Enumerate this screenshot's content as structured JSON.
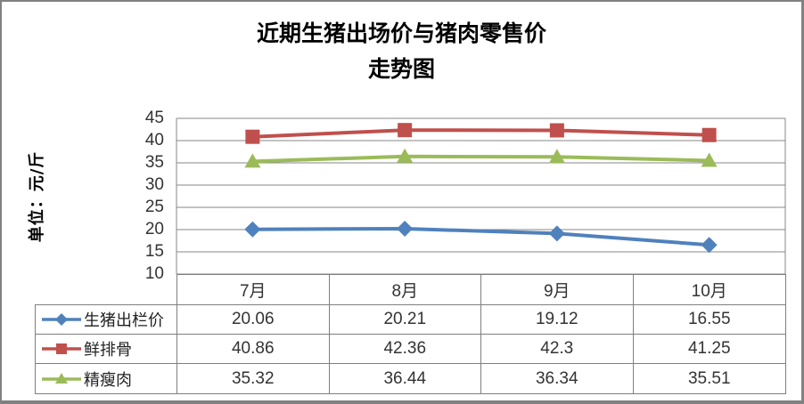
{
  "title": {
    "line1": "近期生猪出场价与猪肉零售价",
    "line2": "走势图"
  },
  "y_axis": {
    "title": "单位：元/斤",
    "ticks": [
      45,
      40,
      35,
      30,
      25,
      20,
      15,
      10
    ],
    "min": 10,
    "max": 45
  },
  "chart_data": {
    "type": "line",
    "title": "近期生猪出场价与猪肉零售价 走势图",
    "ylabel": "单位：元/斤",
    "categories": [
      "7月",
      "8月",
      "9月",
      "10月"
    ],
    "series": [
      {
        "name": "生猪出栏价",
        "marker": "diamond",
        "color": "#4F81BD",
        "values": [
          20.06,
          20.21,
          19.12,
          16.55
        ]
      },
      {
        "name": "鲜排骨",
        "marker": "square",
        "color": "#C0504D",
        "values": [
          40.86,
          42.36,
          42.3,
          41.25
        ]
      },
      {
        "name": "精瘦肉",
        "marker": "triangle",
        "color": "#9BBB59",
        "values": [
          35.32,
          36.44,
          36.34,
          35.51
        ]
      }
    ],
    "ylim": [
      10,
      45
    ],
    "grid": true,
    "legend_position": "table-left"
  },
  "colors": {
    "grid": "#878787",
    "axis": "#878787",
    "table_border": "#7f7f7f",
    "frame": "#818181",
    "text": "#262626"
  }
}
